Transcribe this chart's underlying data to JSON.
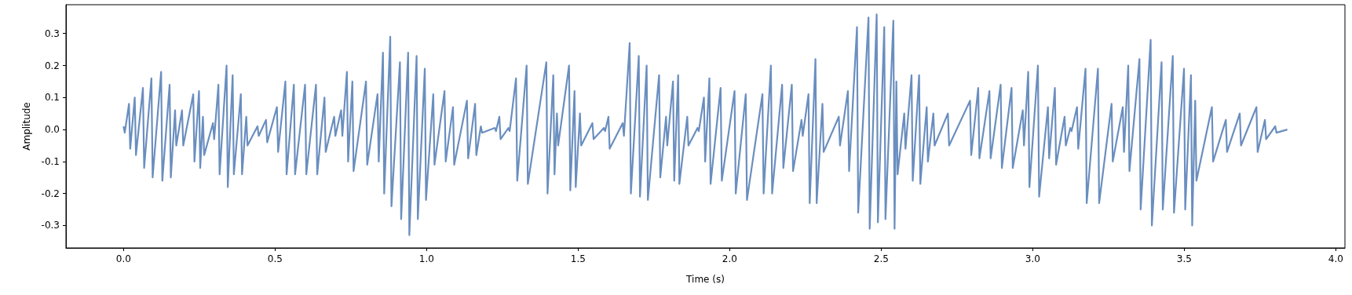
{
  "chart_data": {
    "type": "line",
    "xlabel": "Time (s)",
    "ylabel": "Amplitude",
    "xlim": [
      -0.19,
      4.03
    ],
    "ylim": [
      -0.37,
      0.39
    ],
    "xticks": [
      {
        "value": 0,
        "label": "0.0"
      },
      0.5,
      {
        "value": 1,
        "label": "1.0"
      },
      1.5,
      {
        "value": 2,
        "label": "2.0"
      },
      2.5,
      {
        "value": 3,
        "label": "3.0"
      },
      3.5,
      {
        "value": 4,
        "label": "4.0"
      }
    ],
    "yticks": [
      -0.3,
      -0.2,
      -0.1,
      {
        "value": 0,
        "label": "0.0"
      },
      0.1,
      0.2,
      0.3
    ],
    "grid": false,
    "marker": "none",
    "line_style": "solid",
    "series": [
      {
        "color": "#6a8ebf",
        "x": [
          0,
          0.004,
          0.018,
          0.022,
          0.037,
          0.041,
          0.064,
          0.068,
          0.092,
          0.096,
          0.124,
          0.128,
          0.152,
          0.156,
          0.17,
          0.174,
          0.193,
          0.197,
          0.23,
          0.234,
          0.249,
          0.253,
          0.262,
          0.266,
          0.295,
          0.299,
          0.313,
          0.317,
          0.34,
          0.344,
          0.36,
          0.364,
          0.387,
          0.391,
          0.405,
          0.409,
          0.442,
          0.446,
          0.47,
          0.474,
          0.506,
          0.51,
          0.534,
          0.538,
          0.562,
          0.566,
          0.599,
          0.603,
          0.635,
          0.639,
          0.663,
          0.667,
          0.695,
          0.699,
          0.718,
          0.722,
          0.737,
          0.741,
          0.755,
          0.759,
          0.8,
          0.804,
          0.838,
          0.842,
          0.856,
          0.86,
          0.88,
          0.884,
          0.912,
          0.916,
          0.939,
          0.943,
          0.967,
          0.971,
          0.994,
          0.998,
          1.022,
          1.026,
          1.059,
          1.063,
          1.087,
          1.091,
          1.133,
          1.137,
          1.16,
          1.164,
          1.179,
          1.183,
          1.225,
          1.229,
          1.24,
          1.244,
          1.27,
          1.274,
          1.295,
          1.299,
          1.33,
          1.334,
          1.395,
          1.399,
          1.418,
          1.422,
          1.43,
          1.434,
          1.47,
          1.474,
          1.488,
          1.492,
          1.506,
          1.51,
          1.547,
          1.551,
          1.585,
          1.589,
          1.6,
          1.604,
          1.647,
          1.651,
          1.67,
          1.674,
          1.7,
          1.704,
          1.726,
          1.73,
          1.767,
          1.771,
          1.79,
          1.794,
          1.813,
          1.817,
          1.83,
          1.834,
          1.86,
          1.864,
          1.894,
          1.898,
          1.915,
          1.919,
          1.933,
          1.937,
          1.97,
          1.974,
          2.016,
          2.02,
          2.053,
          2.057,
          2.108,
          2.112,
          2.136,
          2.14,
          2.173,
          2.177,
          2.205,
          2.209,
          2.237,
          2.241,
          2.26,
          2.264,
          2.283,
          2.287,
          2.306,
          2.31,
          2.36,
          2.364,
          2.39,
          2.394,
          2.42,
          2.424,
          2.458,
          2.462,
          2.485,
          2.489,
          2.51,
          2.514,
          2.54,
          2.544,
          2.55,
          2.554,
          2.576,
          2.58,
          2.6,
          2.604,
          2.625,
          2.629,
          2.65,
          2.654,
          2.672,
          2.676,
          2.72,
          2.724,
          2.793,
          2.797,
          2.82,
          2.824,
          2.857,
          2.861,
          2.894,
          2.898,
          2.93,
          2.934,
          2.967,
          2.971,
          2.985,
          2.989,
          3.017,
          3.021,
          3.05,
          3.054,
          3.073,
          3.077,
          3.105,
          3.109,
          3.124,
          3.128,
          3.146,
          3.15,
          3.174,
          3.178,
          3.215,
          3.219,
          3.26,
          3.264,
          3.297,
          3.301,
          3.315,
          3.319,
          3.352,
          3.356,
          3.389,
          3.393,
          3.425,
          3.429,
          3.462,
          3.466,
          3.499,
          3.503,
          3.522,
          3.526,
          3.536,
          3.54,
          3.591,
          3.595,
          3.637,
          3.641,
          3.683,
          3.687,
          3.738,
          3.742,
          3.766,
          3.77,
          3.8,
          3.804,
          3.84
        ],
        "values": [
          0.01,
          -0.01,
          0.08,
          -0.06,
          0.1,
          -0.08,
          0.13,
          -0.12,
          0.16,
          -0.15,
          0.18,
          -0.16,
          0.14,
          -0.15,
          0.06,
          -0.05,
          0.06,
          -0.05,
          0.11,
          -0.1,
          0.12,
          -0.12,
          0.04,
          -0.08,
          0.02,
          -0.03,
          0.14,
          -0.14,
          0.2,
          -0.18,
          0.17,
          -0.14,
          0.11,
          -0.14,
          0.04,
          -0.05,
          0.01,
          -0.02,
          0.03,
          -0.04,
          0.07,
          -0.07,
          0.15,
          -0.14,
          0.14,
          -0.14,
          0.14,
          -0.14,
          0.14,
          -0.14,
          0.1,
          -0.07,
          0.04,
          -0.02,
          0.06,
          -0.02,
          0.18,
          -0.1,
          0.15,
          -0.13,
          0.15,
          -0.11,
          0.11,
          -0.1,
          0.24,
          -0.2,
          0.29,
          -0.24,
          0.21,
          -0.28,
          0.24,
          -0.33,
          0.23,
          -0.28,
          0.19,
          -0.22,
          0.11,
          -0.11,
          0.12,
          -0.1,
          0.07,
          -0.11,
          0.09,
          -0.09,
          0.08,
          -0.08,
          0.01,
          -0.01,
          0.005,
          -0.005,
          0.04,
          -0.03,
          0.005,
          -0.005,
          0.16,
          -0.16,
          0.2,
          -0.17,
          0.21,
          -0.2,
          0.17,
          -0.14,
          0.05,
          -0.05,
          0.2,
          -0.19,
          0.12,
          -0.18,
          0.05,
          -0.05,
          0.02,
          -0.03,
          0.005,
          -0.005,
          0.04,
          -0.06,
          0.02,
          -0.02,
          0.27,
          -0.2,
          0.23,
          -0.21,
          0.2,
          -0.22,
          0.17,
          -0.15,
          0.04,
          -0.05,
          0.15,
          -0.16,
          0.17,
          -0.17,
          0.04,
          -0.05,
          0.005,
          -0.005,
          0.1,
          -0.1,
          0.16,
          -0.17,
          0.13,
          -0.16,
          0.12,
          -0.2,
          0.11,
          -0.22,
          0.11,
          -0.2,
          0.2,
          -0.2,
          0.14,
          -0.12,
          0.14,
          -0.13,
          0.03,
          -0.02,
          0.11,
          -0.23,
          0.22,
          -0.23,
          0.08,
          -0.07,
          0.04,
          -0.05,
          0.12,
          -0.13,
          0.32,
          -0.26,
          0.35,
          -0.31,
          0.36,
          -0.29,
          0.32,
          -0.28,
          0.34,
          -0.31,
          0.15,
          -0.14,
          0.05,
          -0.06,
          0.17,
          -0.16,
          0.17,
          -0.17,
          0.07,
          -0.1,
          0.05,
          -0.05,
          0.05,
          -0.05,
          0.09,
          -0.08,
          0.13,
          -0.09,
          0.12,
          -0.09,
          0.14,
          -0.12,
          0.13,
          -0.12,
          0.06,
          -0.05,
          0.18,
          -0.18,
          0.2,
          -0.21,
          0.07,
          -0.09,
          0.13,
          -0.11,
          0.04,
          -0.05,
          0.005,
          -0.005,
          0.07,
          -0.06,
          0.19,
          -0.23,
          0.19,
          -0.23,
          0.08,
          -0.1,
          0.07,
          -0.07,
          0.2,
          -0.13,
          0.22,
          -0.25,
          0.28,
          -0.3,
          0.21,
          -0.25,
          0.23,
          -0.26,
          0.19,
          -0.25,
          0.17,
          -0.3,
          0.09,
          -0.16,
          0.07,
          -0.1,
          0.03,
          -0.07,
          0.05,
          -0.05,
          0.07,
          -0.07,
          0.03,
          -0.03,
          0.01,
          -0.01,
          0
        ]
      }
    ]
  }
}
